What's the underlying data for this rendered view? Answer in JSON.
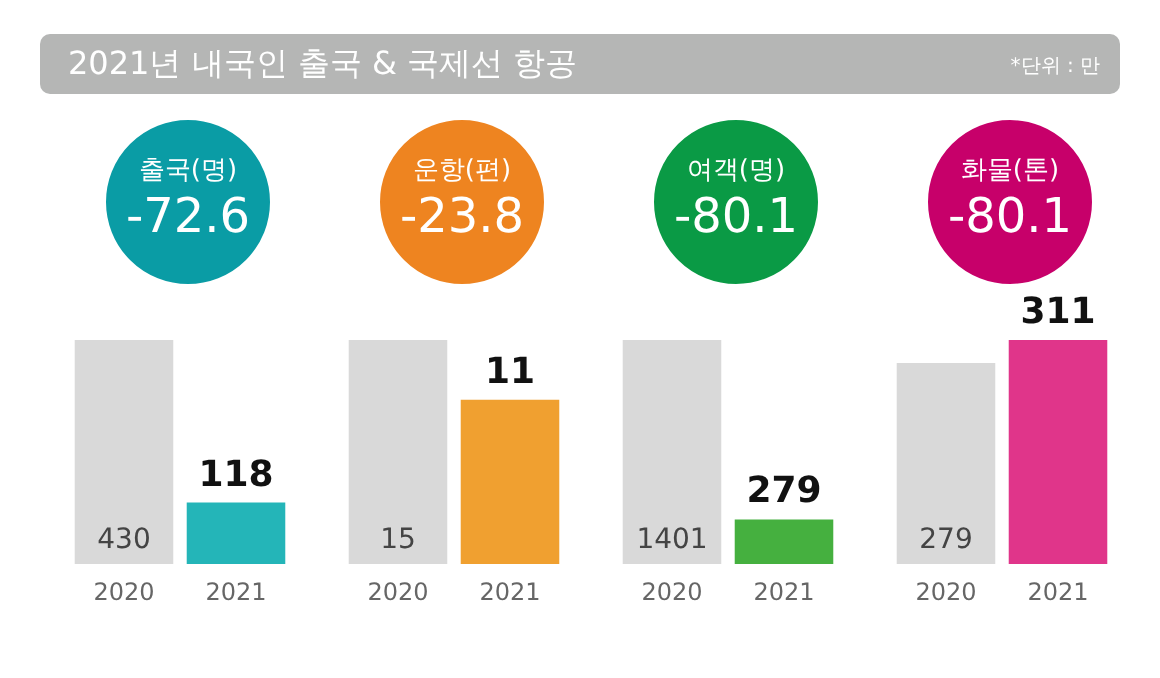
{
  "chart_data": [
    {
      "type": "other",
      "title": "2021년 내국인 출국 & 국제선 항공",
      "annotations": [
        "*단위 : 만"
      ]
    },
    {
      "type": "bar",
      "title": "출국(명)",
      "annotations": [
        "-72.6"
      ],
      "categories": [
        "2020",
        "2021"
      ],
      "values": [
        430,
        118
      ],
      "colors": [
        "#d9d9d9",
        "#24b5b8"
      ],
      "data_labels": true
    },
    {
      "type": "bar",
      "title": "운항(편)",
      "annotations": [
        "-23.8"
      ],
      "categories": [
        "2020",
        "2021"
      ],
      "values": [
        15,
        11
      ],
      "colors": [
        "#d9d9d9",
        "#f0a030"
      ],
      "data_labels": true
    },
    {
      "type": "bar",
      "title": "여객(명)",
      "annotations": [
        "-80.1"
      ],
      "categories": [
        "2020",
        "2021"
      ],
      "values": [
        1401,
        279
      ],
      "colors": [
        "#d9d9d9",
        "#45b03f"
      ],
      "data_labels": true
    },
    {
      "type": "bar",
      "title": "화물(톤)",
      "annotations": [
        "-80.1"
      ],
      "categories": [
        "2020",
        "2021"
      ],
      "values": [
        279,
        311
      ],
      "colors": [
        "#d9d9d9",
        "#e0358a"
      ],
      "data_labels": true
    }
  ]
}
